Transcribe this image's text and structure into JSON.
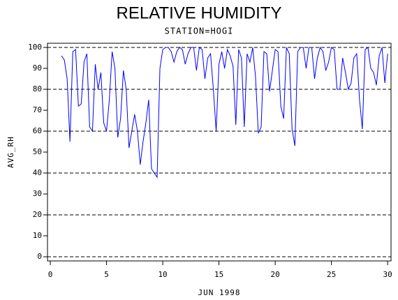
{
  "chart_data": {
    "type": "line",
    "title": "RELATIVE HUMIDITY",
    "subtitle": "STATION=HOGI",
    "x_label": "JUN 1998",
    "y_label": "AVG_RH",
    "xlim": [
      -0.25,
      30.3
    ],
    "ylim": [
      -2,
      102
    ],
    "xticks": [
      0,
      5,
      10,
      15,
      20,
      25,
      30
    ],
    "yticks": [
      0,
      10,
      20,
      30,
      40,
      50,
      60,
      70,
      80,
      90,
      100
    ],
    "grid_lines": [
      0,
      20,
      40,
      60,
      80,
      100
    ],
    "x": [
      1,
      1.25,
      1.5,
      1.75,
      2,
      2.25,
      2.5,
      2.75,
      3,
      3.25,
      3.5,
      3.75,
      4,
      4.25,
      4.5,
      4.75,
      5,
      5.25,
      5.5,
      5.75,
      6,
      6.25,
      6.5,
      6.75,
      7,
      7.25,
      7.5,
      7.75,
      8,
      8.25,
      8.5,
      8.75,
      9,
      9.25,
      9.5,
      9.75,
      10,
      10.25,
      10.5,
      10.75,
      11,
      11.25,
      11.5,
      11.75,
      12,
      12.25,
      12.5,
      12.75,
      13,
      13.25,
      13.5,
      13.75,
      14,
      14.25,
      14.5,
      14.75,
      15,
      15.25,
      15.5,
      15.75,
      16,
      16.25,
      16.5,
      16.75,
      17,
      17.25,
      17.5,
      17.75,
      18,
      18.25,
      18.5,
      18.75,
      19,
      19.25,
      19.5,
      19.75,
      20,
      20.25,
      20.5,
      20.75,
      21,
      21.25,
      21.5,
      21.75,
      22,
      22.25,
      22.5,
      22.75,
      23,
      23.25,
      23.5,
      23.75,
      24,
      24.25,
      24.5,
      24.75,
      25,
      25.25,
      25.5,
      25.75,
      26,
      26.25,
      26.5,
      26.75,
      27,
      27.25,
      27.5,
      27.75,
      28,
      28.25,
      28.5,
      28.75,
      29,
      29.25,
      29.5,
      29.75,
      30
    ],
    "series": [
      {
        "name": "AVG_RH",
        "color": "#0000ff",
        "values": [
          96,
          94,
          85,
          55,
          98,
          99,
          72,
          73,
          93,
          97,
          62,
          60,
          92,
          80,
          88,
          64,
          60,
          75,
          98,
          90,
          57,
          66,
          89,
          80,
          52,
          60,
          68,
          60,
          44,
          55,
          64,
          75,
          42,
          40,
          38,
          90,
          99,
          100,
          100,
          98,
          93,
          98,
          100,
          99,
          92,
          97,
          100,
          100,
          89,
          100,
          99,
          85,
          95,
          97,
          80,
          60,
          92,
          98,
          90,
          99,
          96,
          91,
          63,
          99,
          95,
          62,
          97,
          93,
          100,
          86,
          59,
          62,
          98,
          97,
          79,
          89,
          99,
          98,
          72,
          66,
          100,
          97,
          61,
          53,
          98,
          100,
          100,
          90,
          100,
          100,
          85,
          95,
          100,
          98,
          89,
          93,
          100,
          99,
          80,
          80,
          95,
          88,
          80,
          83,
          95,
          97,
          75,
          61,
          99,
          100,
          90,
          88,
          82,
          96,
          100,
          83,
          97
        ]
      }
    ]
  }
}
